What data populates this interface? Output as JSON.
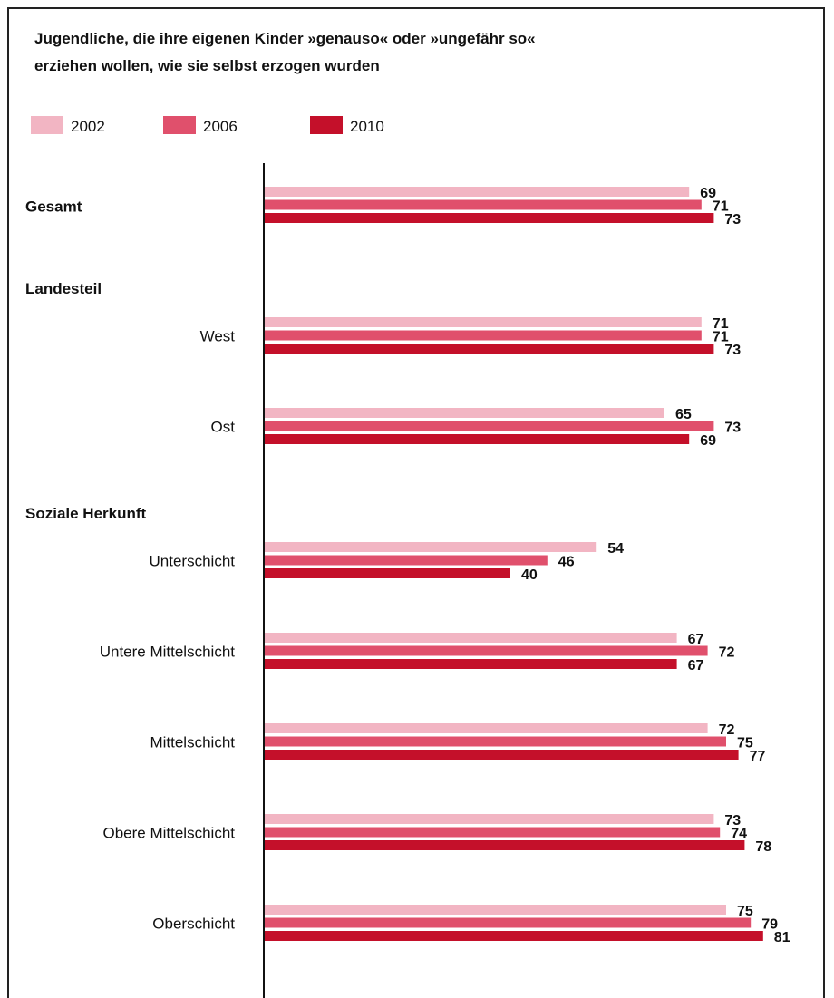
{
  "chart_data": {
    "type": "bar",
    "orientation": "horizontal",
    "title": "Jugendliche, die ihre eigenen Kinder »genauso« oder »ungefähr so«\nerziehen wollen, wie sie selbst erzogen wurden",
    "legend_position": "top-left",
    "grid": false,
    "xlim": [
      0,
      100
    ],
    "series": [
      {
        "name": "2002",
        "color": "#f2b5c3"
      },
      {
        "name": "2006",
        "color": "#e0506c"
      },
      {
        "name": "2010",
        "color": "#c4102a"
      }
    ],
    "groups": [
      {
        "label": "Gesamt",
        "categories": [
          {
            "label": "",
            "values": [
              69,
              71,
              73
            ]
          }
        ]
      },
      {
        "label": "Landesteil",
        "categories": [
          {
            "label": "West",
            "values": [
              71,
              71,
              73
            ]
          },
          {
            "label": "Ost",
            "values": [
              65,
              73,
              69
            ]
          }
        ]
      },
      {
        "label": "Soziale Herkunft",
        "categories": [
          {
            "label": "Unterschicht",
            "values": [
              54,
              46,
              40
            ]
          },
          {
            "label": "Untere Mittelschicht",
            "values": [
              67,
              72,
              67
            ]
          },
          {
            "label": "Mittelschicht",
            "values": [
              72,
              75,
              77
            ]
          },
          {
            "label": "Obere Mittelschicht",
            "values": [
              73,
              74,
              78
            ]
          },
          {
            "label": "Oberschicht",
            "values": [
              75,
              79,
              81
            ]
          }
        ]
      }
    ]
  }
}
